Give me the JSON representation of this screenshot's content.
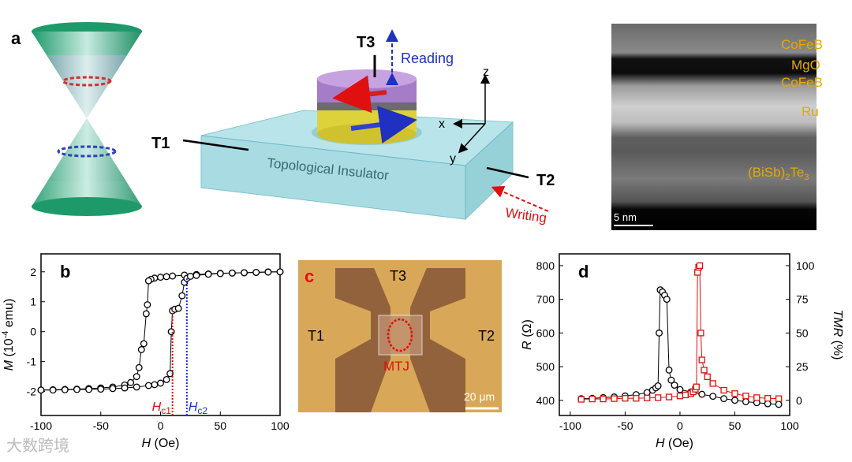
{
  "figure": {
    "panel_a": {
      "label": "a",
      "t3": "T3",
      "reading": "Reading",
      "t1": "T1",
      "t2": "T2",
      "slab": "Topological Insulator",
      "writing": "Writing",
      "z": "z",
      "x": "x",
      "y": "y"
    },
    "tem": {
      "layers": [
        "CoFeB",
        "MgO",
        "CoFeB",
        "Ru"
      ],
      "bisbte": [
        "(BiSb)",
        "2",
        "Te",
        "3"
      ],
      "scale": "5 nm"
    },
    "panel_c": {
      "label": "c",
      "t3": "T3",
      "t1": "T1",
      "t2": "T2",
      "mtj": "MTJ",
      "scale": "20 μm"
    },
    "watermark": "大数跨境"
  },
  "chart_data": [
    {
      "type": "scatter",
      "panel_label": "b",
      "xlabel": {
        "italic": "H",
        "text": " (Oe)"
      },
      "ylabel": {
        "italic": "M",
        "text": " (10",
        "sup": "-4",
        "rest": " emu)"
      },
      "xlim": [
        -100,
        100
      ],
      "ylim": [
        -2.8,
        2.6
      ],
      "xticks": [
        -100,
        -50,
        0,
        50,
        100
      ],
      "yticks": [
        -2,
        -1,
        0,
        1,
        2
      ],
      "series": [
        {
          "color": "#000000",
          "marker": "circle",
          "x": [
            100,
            90,
            80,
            70,
            60,
            50,
            40,
            30,
            20,
            10,
            5,
            0,
            -5,
            -8,
            -10,
            -11,
            -12,
            -14,
            -16,
            -18,
            -20,
            -25,
            -30,
            -40,
            -50,
            -60,
            -70,
            -80,
            -90,
            -100
          ],
          "values": [
            2.0,
            2.0,
            1.98,
            1.97,
            1.96,
            1.95,
            1.93,
            1.91,
            1.89,
            1.86,
            1.84,
            1.82,
            1.79,
            1.75,
            1.7,
            0.9,
            0.6,
            -0.4,
            -0.6,
            -1.2,
            -1.5,
            -1.7,
            -1.78,
            -1.85,
            -1.88,
            -1.9,
            -1.92,
            -1.93,
            -1.94,
            -1.95
          ]
        },
        {
          "color": "#000000",
          "marker": "circle",
          "x": [
            -100,
            -90,
            -80,
            -70,
            -60,
            -50,
            -40,
            -30,
            -20,
            -10,
            -5,
            0,
            5,
            8,
            9,
            10,
            12,
            15,
            18,
            20,
            22,
            25,
            30,
            40,
            50,
            60,
            70,
            80,
            90,
            100
          ],
          "values": [
            -1.95,
            -1.95,
            -1.94,
            -1.93,
            -1.93,
            -1.92,
            -1.9,
            -1.88,
            -1.85,
            -1.8,
            -1.77,
            -1.72,
            -1.6,
            -1.4,
            0.0,
            0.7,
            0.75,
            0.78,
            1.2,
            1.65,
            1.78,
            1.85,
            1.88,
            1.92,
            1.94,
            1.96,
            1.97,
            1.98,
            1.99,
            2.0
          ]
        }
      ],
      "annotations": [
        {
          "symbol": "H",
          "subscript": "c1",
          "x": 10,
          "color": "#e01010"
        },
        {
          "symbol": "H",
          "subscript": "c2",
          "x": 22,
          "color": "#1030e0"
        }
      ]
    },
    {
      "type": "scatter",
      "panel_label": "d",
      "xlabel": {
        "italic": "H",
        "text": " (Oe)"
      },
      "ylabel": {
        "italic": "R",
        "text": " (Ω)"
      },
      "y2label": {
        "italic": "TMR",
        "text": " (%)"
      },
      "xlim": [
        -110,
        100
      ],
      "ylim": [
        355,
        835
      ],
      "y2lim": [
        -11.25,
        108.75
      ],
      "xticks": [
        -100,
        -50,
        0,
        50,
        100
      ],
      "yticks": [
        400,
        500,
        600,
        700,
        800
      ],
      "y2ticks": [
        0,
        25,
        50,
        75,
        100
      ],
      "series": [
        {
          "color": "#000000",
          "marker": "circle",
          "x": [
            -90,
            -80,
            -70,
            -60,
            -50,
            -40,
            -30,
            -25,
            -22,
            -20,
            -19,
            -18,
            -16,
            -14,
            -12,
            -10,
            -8,
            -5,
            0,
            10,
            20,
            30,
            40,
            50,
            60,
            70,
            80,
            90
          ],
          "values": [
            405,
            406,
            408,
            410,
            413,
            417,
            423,
            430,
            437,
            443,
            600,
            728,
            722,
            712,
            700,
            490,
            460,
            445,
            432,
            425,
            418,
            412,
            405,
            400,
            396,
            393,
            390,
            388
          ]
        },
        {
          "color": "#e01010",
          "marker": "square",
          "x": [
            -90,
            -80,
            -70,
            -60,
            -50,
            -40,
            -30,
            -20,
            -10,
            0,
            5,
            10,
            12,
            14,
            15,
            16,
            17,
            18,
            19,
            20,
            22,
            25,
            30,
            40,
            50,
            60,
            70,
            80,
            90
          ],
          "values": [
            403,
            404,
            404,
            405,
            406,
            406,
            407,
            408,
            410,
            413,
            416,
            420,
            425,
            433,
            440,
            780,
            795,
            800,
            600,
            520,
            490,
            470,
            450,
            430,
            420,
            413,
            408,
            406,
            405
          ]
        }
      ]
    }
  ]
}
